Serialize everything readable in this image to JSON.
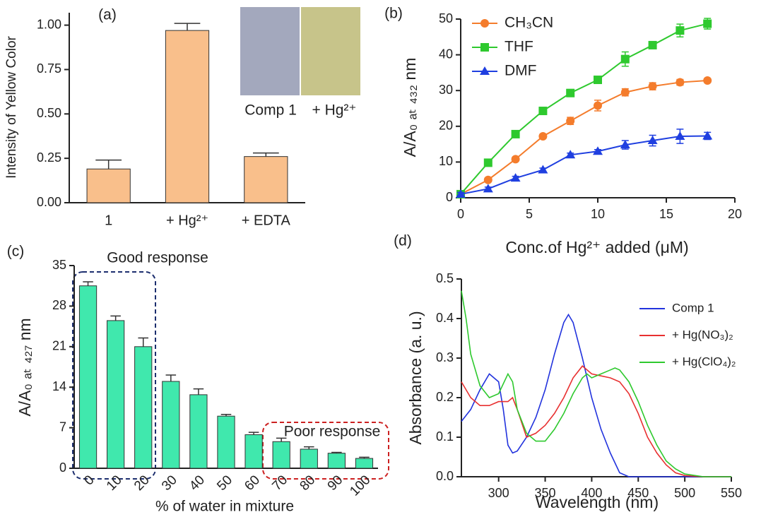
{
  "chart_data": [
    {
      "type": "bar",
      "title": "(a)",
      "y_label": "Intensity of Yellow  Color",
      "categories": [
        "1",
        "+ Hg²⁺",
        "+ EDTA"
      ],
      "values": [
        0.19,
        0.97,
        0.26
      ],
      "errors": [
        0.05,
        0.04,
        0.02
      ],
      "color": "#f9bf8b",
      "ylim": [
        0,
        1.07
      ],
      "yticks": [
        {
          "value": 0,
          "label": "0.00"
        },
        {
          "value": 0.25,
          "label": "0.25"
        },
        {
          "value": 0.5,
          "label": "0.50"
        },
        {
          "value": 0.75,
          "label": "0.75"
        },
        {
          "value": 1,
          "label": "1.00"
        }
      ],
      "inset_labels": [
        "Comp 1",
        "+ Hg²⁺"
      ]
    },
    {
      "type": "scatter",
      "title": "(b)",
      "x_label": "Conc.of Hg²⁺ added (μM)",
      "y_label": "A/A₀ ₐₜ ₄₃₂ nm",
      "x": [
        0,
        2,
        4,
        6,
        8,
        10,
        12,
        14,
        16,
        18
      ],
      "series": [
        {
          "name": "CH₃CN",
          "color": "#f47c2c",
          "marker": "circle",
          "values": [
            1,
            5,
            10.8,
            17.2,
            21.5,
            25.8,
            29.5,
            31.2,
            32.3,
            32.8
          ],
          "errors": [
            0.5,
            0.5,
            0.5,
            0.5,
            1,
            1.5,
            1,
            1,
            0.8,
            0.5
          ]
        },
        {
          "name": "THF",
          "color": "#2ec92e",
          "marker": "square",
          "values": [
            1,
            9.8,
            17.8,
            24.3,
            29.3,
            33,
            38.8,
            42.7,
            46.8,
            48.7
          ],
          "errors": [
            0.5,
            0.5,
            0.5,
            0.5,
            1,
            0.8,
            2,
            0.7,
            1.8,
            1.5
          ]
        },
        {
          "name": "DMF",
          "color": "#1f3fe0",
          "marker": "triangle",
          "values": [
            1,
            2.5,
            5.5,
            7.8,
            12,
            13,
            14.8,
            16,
            17.2,
            17.3
          ],
          "errors": [
            0.5,
            0.5,
            0.5,
            0.5,
            0.5,
            0.5,
            1.2,
            1.5,
            2,
            1
          ]
        }
      ],
      "xlim": [
        0,
        20
      ],
      "ylim": [
        0,
        50
      ],
      "xticks": [
        0,
        5,
        10,
        15,
        20
      ],
      "yticks": [
        0,
        10,
        20,
        30,
        40,
        50
      ],
      "legend": "upper left"
    },
    {
      "type": "bar",
      "title": "(c)",
      "x_label": "% of water in mixture",
      "y_label": "A/A₀ ₐₜ ₄₂₇ nm",
      "categories": [
        "0",
        "10",
        "20",
        "30",
        "40",
        "50",
        "60",
        "70",
        "80",
        "90",
        "100"
      ],
      "values": [
        31.5,
        25.5,
        21,
        15,
        12.7,
        9,
        5.8,
        4.6,
        3.3,
        2.6,
        1.7
      ],
      "errors": [
        0.7,
        0.8,
        1.5,
        1.1,
        1,
        0.3,
        0.4,
        0.6,
        0.4,
        0.15,
        0.2
      ],
      "color": "#40e8ad",
      "ylim": [
        0,
        35
      ],
      "yticks": [
        0,
        7,
        14,
        21,
        28,
        35
      ],
      "annotations": [
        "Good response",
        "Poor response"
      ]
    },
    {
      "type": "line",
      "title": "(d)",
      "x_label": "Wavelength (nm)",
      "y_label": "Absorbance (a. u.)",
      "series": [
        {
          "name": "Comp 1",
          "color": "#2233dd",
          "x": [
            260,
            270,
            280,
            290,
            295,
            300,
            305,
            310,
            315,
            320,
            330,
            340,
            350,
            360,
            370,
            375,
            380,
            390,
            400,
            410,
            420,
            430,
            440,
            500,
            550
          ],
          "values": [
            0.14,
            0.17,
            0.22,
            0.26,
            0.25,
            0.24,
            0.17,
            0.08,
            0.06,
            0.065,
            0.1,
            0.15,
            0.22,
            0.31,
            0.39,
            0.41,
            0.39,
            0.3,
            0.2,
            0.12,
            0.06,
            0.01,
            0,
            0,
            0
          ]
        },
        {
          "name": "+ Hg(NO₃)₂",
          "color": "#e83030",
          "x": [
            260,
            270,
            280,
            290,
            300,
            310,
            315,
            320,
            330,
            340,
            350,
            360,
            370,
            380,
            390,
            400,
            410,
            420,
            430,
            440,
            450,
            460,
            470,
            480,
            490,
            500,
            520,
            550
          ],
          "values": [
            0.24,
            0.2,
            0.18,
            0.18,
            0.19,
            0.19,
            0.2,
            0.17,
            0.1,
            0.11,
            0.13,
            0.16,
            0.2,
            0.25,
            0.28,
            0.26,
            0.255,
            0.25,
            0.24,
            0.21,
            0.16,
            0.1,
            0.06,
            0.03,
            0.01,
            0.003,
            0,
            0
          ]
        },
        {
          "name": "+ Hg(ClO₄)₂",
          "color": "#2ec92e",
          "x": [
            260,
            265,
            270,
            280,
            290,
            300,
            310,
            315,
            320,
            330,
            340,
            350,
            360,
            370,
            380,
            390,
            395,
            400,
            410,
            420,
            425,
            430,
            440,
            450,
            460,
            470,
            480,
            490,
            500,
            520,
            550
          ],
          "values": [
            0.47,
            0.4,
            0.31,
            0.23,
            0.2,
            0.21,
            0.26,
            0.24,
            0.17,
            0.11,
            0.09,
            0.09,
            0.12,
            0.16,
            0.21,
            0.25,
            0.26,
            0.25,
            0.26,
            0.27,
            0.275,
            0.27,
            0.24,
            0.19,
            0.13,
            0.08,
            0.04,
            0.02,
            0.007,
            0,
            0
          ]
        }
      ],
      "xlim": [
        260,
        550
      ],
      "ylim": [
        0,
        0.5
      ],
      "xticks": [
        300,
        350,
        400,
        450,
        500,
        550
      ],
      "yticks": [
        {
          "value": 0,
          "label": "0.0"
        },
        0.1,
        0.2,
        0.3,
        0.4,
        0.5
      ],
      "legend": "upper right"
    }
  ]
}
